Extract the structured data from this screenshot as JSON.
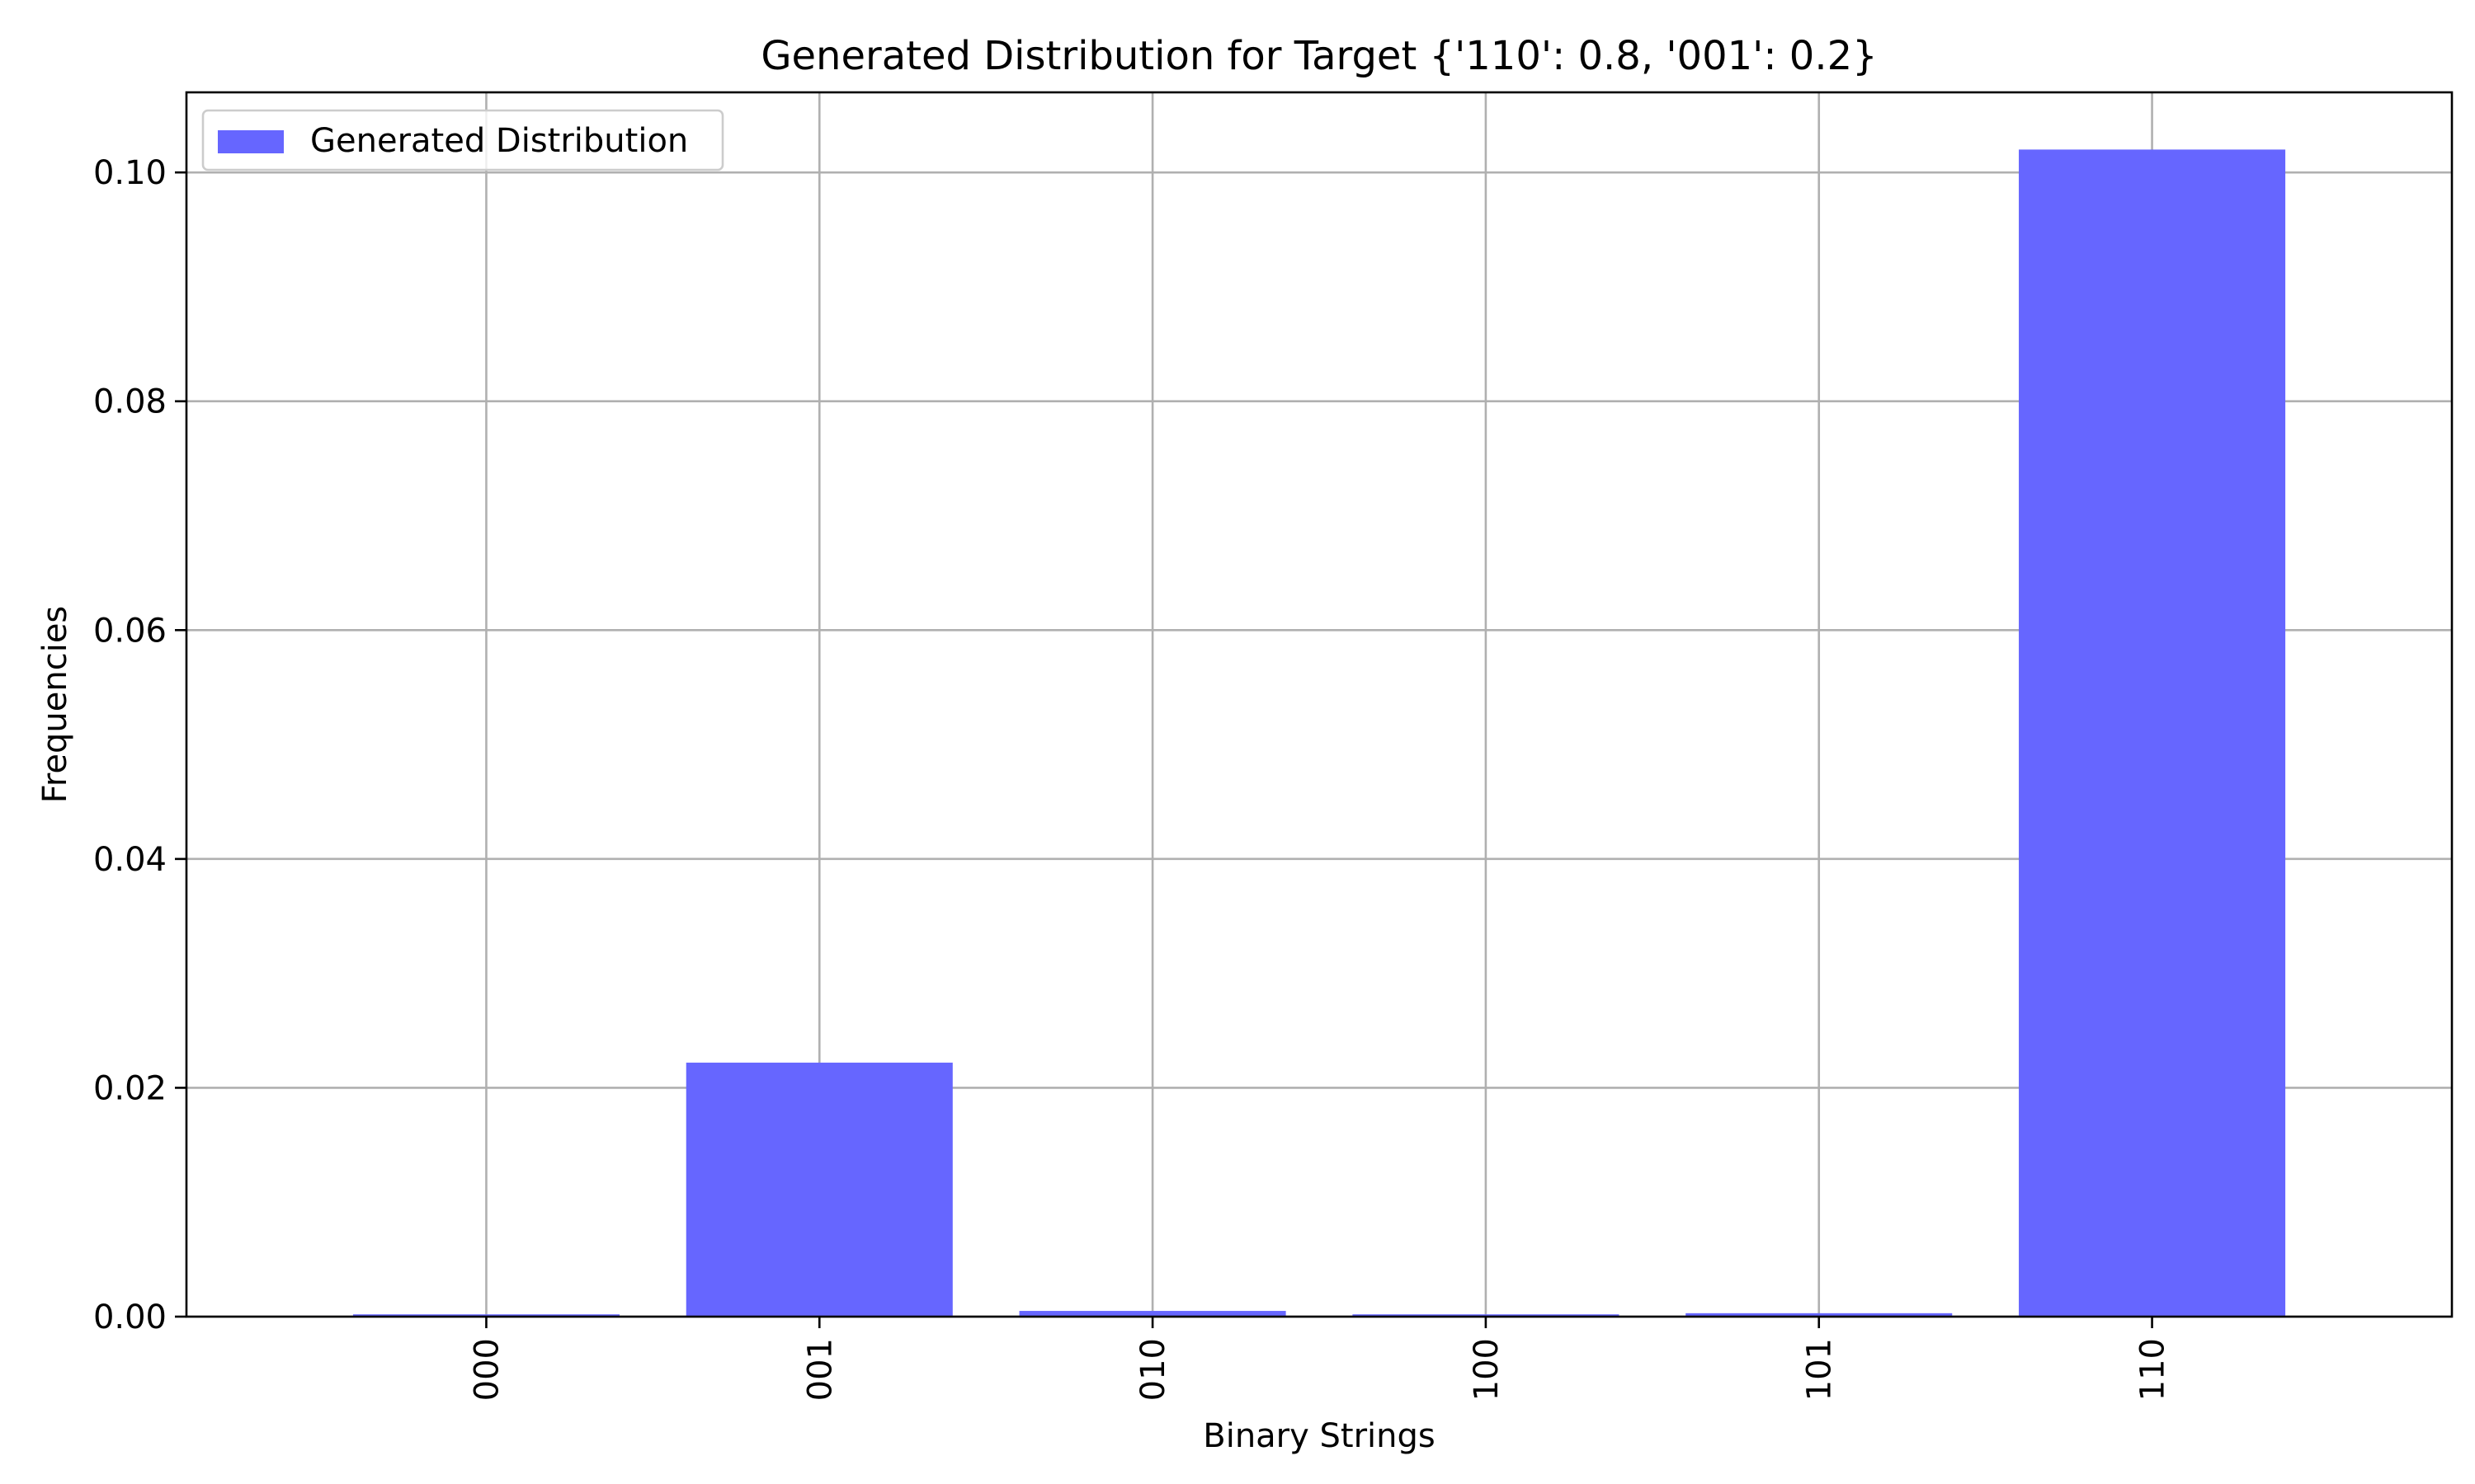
{
  "chart_data": {
    "type": "bar",
    "title": "Generated Distribution for Target {'110': 0.8, '001': 0.2}",
    "xlabel": "Binary Strings",
    "ylabel": "Frequencies",
    "categories": [
      "000",
      "001",
      "010",
      "100",
      "101",
      "110"
    ],
    "series": [
      {
        "name": "Generated Distribution",
        "values": [
          0.0002,
          0.0222,
          0.0005,
          0.0002,
          0.0003,
          0.102
        ],
        "color": "#6666ff"
      }
    ],
    "ylim": [
      0,
      0.107
    ],
    "yticks": [
      0.0,
      0.02,
      0.04,
      0.06,
      0.08,
      0.1
    ],
    "ytick_labels": [
      "0.00",
      "0.02",
      "0.04",
      "0.06",
      "0.08",
      "0.10"
    ],
    "grid": true,
    "legend_position": "top-left",
    "xtick_rotation": "vertical"
  }
}
